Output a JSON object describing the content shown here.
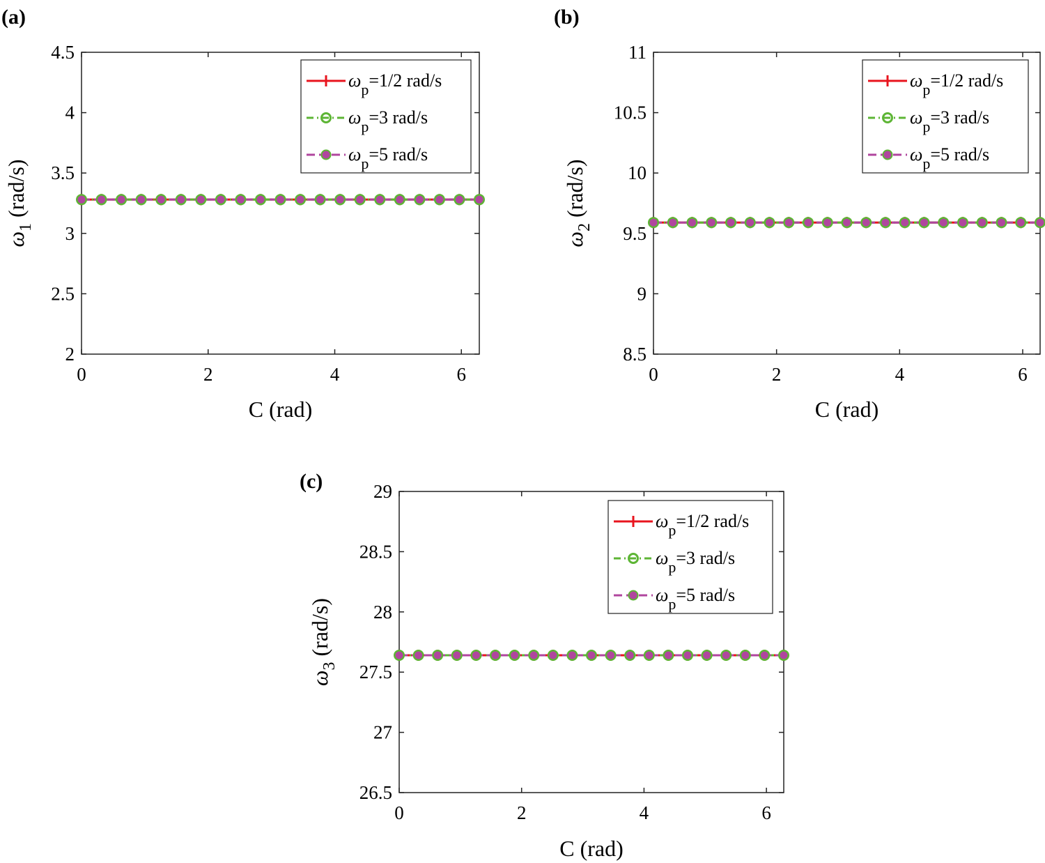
{
  "colors": {
    "series_1": "#e8141e",
    "series_2": "#5db535",
    "series_3": "#b0469e",
    "axis": "#222222"
  },
  "legend_entries": [
    {
      "omega": "ω",
      "sub": "p",
      "rest": "=1/2 rad/s"
    },
    {
      "omega": "ω",
      "sub": "p",
      "rest": "=3 rad/s"
    },
    {
      "omega": "ω",
      "sub": "p",
      "rest": "=5 rad/s"
    }
  ],
  "chart_data": [
    {
      "type": "line",
      "panel_label": "(a)",
      "title": "",
      "xlabel": "C (rad)",
      "ylabel_parts": {
        "symbol": "ω",
        "sub": "1",
        "unit": "(rad/s)"
      },
      "xlim": [
        0,
        6.2832
      ],
      "ylim": [
        2,
        4.5
      ],
      "xticks": [
        0,
        2,
        4,
        6
      ],
      "xtick_labels": [
        "0",
        "2",
        "4",
        "6"
      ],
      "yticks": [
        2,
        2.5,
        3,
        3.5,
        4,
        4.5
      ],
      "ytick_labels": [
        "2",
        "2.5",
        "3",
        "3.5",
        "4",
        "4.5"
      ],
      "x": [
        0,
        0.3142,
        0.6283,
        0.9425,
        1.2566,
        1.5708,
        1.885,
        2.1991,
        2.5133,
        2.8274,
        3.1416,
        3.4558,
        3.7699,
        4.0841,
        4.3982,
        4.7124,
        5.0265,
        5.3407,
        5.6549,
        5.969,
        6.2832
      ],
      "series": [
        {
          "name": "ωp=1/2 rad/s",
          "value": 3.28
        },
        {
          "name": "ωp=3 rad/s",
          "value": 3.28
        },
        {
          "name": "ωp=5 rad/s",
          "value": 3.28
        }
      ],
      "legend_position": "top-right",
      "grid": false
    },
    {
      "type": "line",
      "panel_label": "(b)",
      "title": "",
      "xlabel": "C (rad)",
      "ylabel_parts": {
        "symbol": "ω",
        "sub": "2",
        "unit": "(rad/s)"
      },
      "xlim": [
        0,
        6.2832
      ],
      "ylim": [
        8.5,
        11
      ],
      "xticks": [
        0,
        2,
        4,
        6
      ],
      "xtick_labels": [
        "0",
        "2",
        "4",
        "6"
      ],
      "yticks": [
        8.5,
        9,
        9.5,
        10,
        10.5,
        11
      ],
      "ytick_labels": [
        "8.5",
        "9",
        "9.5",
        "10",
        "10.5",
        "11"
      ],
      "x": [
        0,
        0.3142,
        0.6283,
        0.9425,
        1.2566,
        1.5708,
        1.885,
        2.1991,
        2.5133,
        2.8274,
        3.1416,
        3.4558,
        3.7699,
        4.0841,
        4.3982,
        4.7124,
        5.0265,
        5.3407,
        5.6549,
        5.969,
        6.2832
      ],
      "series": [
        {
          "name": "ωp=1/2 rad/s",
          "value": 9.59
        },
        {
          "name": "ωp=3 rad/s",
          "value": 9.59
        },
        {
          "name": "ωp=5 rad/s",
          "value": 9.59
        }
      ],
      "legend_position": "top-right",
      "grid": false
    },
    {
      "type": "line",
      "panel_label": "(c)",
      "title": "",
      "xlabel": "C (rad)",
      "ylabel_parts": {
        "symbol": "ω",
        "sub": "3",
        "unit": "(rad/s)"
      },
      "xlim": [
        0,
        6.2832
      ],
      "ylim": [
        26.5,
        29
      ],
      "xticks": [
        0,
        2,
        4,
        6
      ],
      "xtick_labels": [
        "0",
        "2",
        "4",
        "6"
      ],
      "yticks": [
        26.5,
        27,
        27.5,
        28,
        28.5,
        29
      ],
      "ytick_labels": [
        "26.5",
        "27",
        "27.5",
        "28",
        "28.5",
        "29"
      ],
      "x": [
        0,
        0.3142,
        0.6283,
        0.9425,
        1.2566,
        1.5708,
        1.885,
        2.1991,
        2.5133,
        2.8274,
        3.1416,
        3.4558,
        3.7699,
        4.0841,
        4.3982,
        4.7124,
        5.0265,
        5.3407,
        5.6549,
        5.969,
        6.2832
      ],
      "series": [
        {
          "name": "ωp=1/2 rad/s",
          "value": 27.64
        },
        {
          "name": "ωp=3 rad/s",
          "value": 27.64
        },
        {
          "name": "ωp=5 rad/s",
          "value": 27.64
        }
      ],
      "legend_position": "top-right",
      "grid": false
    }
  ]
}
